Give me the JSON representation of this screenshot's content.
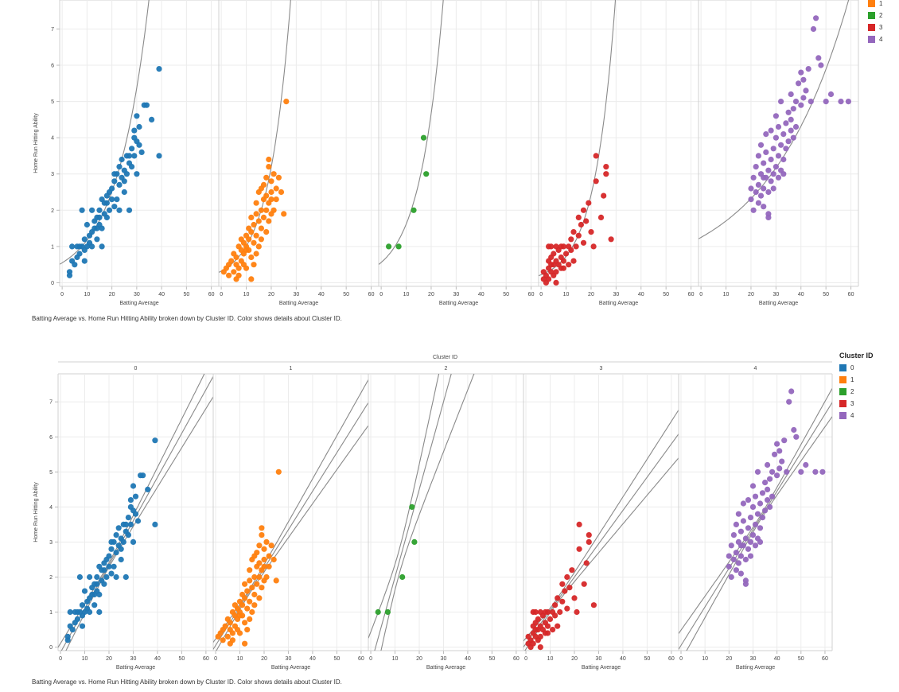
{
  "chart_data": [
    {
      "type": "scatter",
      "trend": "exponential",
      "xlabel": "Batting Average",
      "ylabel": "Home Run Hitting Ability",
      "xlim": [
        -1,
        63
      ],
      "ylim": [
        -0.1,
        7.8
      ],
      "xticks": [
        "0",
        "10",
        "20",
        "30",
        "40",
        "50",
        "60"
      ],
      "yticks": [
        "0",
        "1",
        "2",
        "3",
        "4",
        "5",
        "6",
        "7"
      ],
      "grid": true,
      "legend_title": "",
      "legend_position": "top-right",
      "panels": [
        {
          "cluster": "0",
          "color": "#1f77b4",
          "trend_params": [
            0.55,
            0.076
          ]
        },
        {
          "cluster": "1",
          "color": "#ff7f0e",
          "trend_params": [
            0.32,
            0.115
          ]
        },
        {
          "cluster": "2",
          "color": "#2ca02c",
          "trend_params": [
            0.56,
            0.106
          ]
        },
        {
          "cluster": "3",
          "color": "#d62728",
          "trend_params": [
            0.22,
            0.12
          ]
        },
        {
          "cluster": "4",
          "color": "#9467bd",
          "trend_params": [
            1.25,
            0.031
          ]
        }
      ],
      "caption": "Batting Average vs. Home Run Hitting Ability broken down by Cluster ID.  Color shows details about Cluster ID."
    },
    {
      "type": "scatter",
      "trend": "linear with confidence bands",
      "title": "Cluster ID",
      "xlabel": "Batting Average",
      "ylabel": "Home Run Hitting Ability",
      "xlim": [
        -1,
        63
      ],
      "ylim": [
        -0.1,
        7.8
      ],
      "xticks": [
        "0",
        "10",
        "20",
        "30",
        "40",
        "50",
        "60"
      ],
      "yticks": [
        "0",
        "1",
        "2",
        "3",
        "4",
        "5",
        "6",
        "7"
      ],
      "grid": true,
      "legend_title": "Cluster ID",
      "legend_position": "right",
      "panels": [
        {
          "cluster": "0",
          "color": "#1f77b4",
          "trend_params": [
            -0.15,
            0.125
          ]
        },
        {
          "cluster": "1",
          "color": "#ff7f0e",
          "trend_params": [
            0.05,
            0.11
          ]
        },
        {
          "cluster": "2",
          "color": "#2ca02c",
          "trend_params": [
            -0.5,
            0.25
          ]
        },
        {
          "cluster": "3",
          "color": "#d62728",
          "trend_params": [
            0.1,
            0.095
          ]
        },
        {
          "cluster": "4",
          "color": "#9467bd",
          "trend_params": [
            0.05,
            0.11
          ]
        }
      ],
      "caption": "Batting Average vs. Home Run Hitting Ability broken down by Cluster ID.  Color shows details about Cluster ID."
    }
  ],
  "clusters": [
    {
      "id": "0",
      "label": "0",
      "color": "#1f77b4",
      "points": [
        [
          3,
          0.3
        ],
        [
          3,
          0.2
        ],
        [
          4,
          0.6
        ],
        [
          5,
          0.5
        ],
        [
          6,
          0.7
        ],
        [
          4,
          1.0
        ],
        [
          6,
          1.0
        ],
        [
          7,
          0.8
        ],
        [
          8,
          1.0
        ],
        [
          9,
          0.9
        ],
        [
          9,
          1.2
        ],
        [
          10,
          1.0
        ],
        [
          11,
          1.1
        ],
        [
          11,
          1.3
        ],
        [
          12,
          1.4
        ],
        [
          12,
          1.0
        ],
        [
          13,
          1.5
        ],
        [
          13,
          1.7
        ],
        [
          14,
          1.5
        ],
        [
          14,
          1.2
        ],
        [
          15,
          1.6
        ],
        [
          15,
          1.8
        ],
        [
          15,
          2.0
        ],
        [
          16,
          1.5
        ],
        [
          16,
          1.0
        ],
        [
          17,
          1.9
        ],
        [
          17,
          2.2
        ],
        [
          18,
          1.8
        ],
        [
          18,
          2.2
        ],
        [
          19,
          2.5
        ],
        [
          19,
          2.0
        ],
        [
          20,
          2.3
        ],
        [
          20,
          2.6
        ],
        [
          21,
          2.1
        ],
        [
          21,
          2.8
        ],
        [
          22,
          3.0
        ],
        [
          22,
          2.3
        ],
        [
          23,
          2.7
        ],
        [
          23,
          3.2
        ],
        [
          24,
          3.4
        ],
        [
          24,
          2.9
        ],
        [
          25,
          3.1
        ],
        [
          25,
          2.5
        ],
        [
          26,
          3.5
        ],
        [
          26,
          3.0
        ],
        [
          27,
          3.3
        ],
        [
          27,
          2.0
        ],
        [
          28,
          3.7
        ],
        [
          28,
          3.2
        ],
        [
          29,
          4.2
        ],
        [
          29,
          3.5
        ],
        [
          30,
          4.6
        ],
        [
          30,
          3.9
        ],
        [
          31,
          3.8
        ],
        [
          31,
          4.3
        ],
        [
          32,
          3.6
        ],
        [
          33,
          4.9
        ],
        [
          34,
          4.9
        ],
        [
          36,
          4.5
        ],
        [
          39,
          5.9
        ],
        [
          39,
          3.5
        ],
        [
          8,
          2.0
        ],
        [
          12,
          2.0
        ],
        [
          10,
          1.6
        ],
        [
          18,
          2.4
        ],
        [
          23,
          2.0
        ],
        [
          30,
          3.0
        ],
        [
          29,
          4.0
        ],
        [
          21,
          3.0
        ],
        [
          14,
          1.8
        ],
        [
          16,
          2.3
        ],
        [
          25,
          2.8
        ],
        [
          27,
          3.5
        ],
        [
          9,
          0.6
        ],
        [
          7,
          1.0
        ]
      ]
    },
    {
      "id": "1",
      "label": "1",
      "color": "#ff7f0e",
      "points": [
        [
          1,
          0.3
        ],
        [
          2,
          0.4
        ],
        [
          3,
          0.5
        ],
        [
          3,
          0.2
        ],
        [
          4,
          0.6
        ],
        [
          5,
          0.3
        ],
        [
          5,
          0.8
        ],
        [
          6,
          0.5
        ],
        [
          6,
          0.7
        ],
        [
          7,
          0.4
        ],
        [
          7,
          1.0
        ],
        [
          7,
          0.2
        ],
        [
          8,
          0.6
        ],
        [
          8,
          0.9
        ],
        [
          8,
          1.2
        ],
        [
          9,
          0.5
        ],
        [
          9,
          1.1
        ],
        [
          9,
          0.8
        ],
        [
          10,
          1.0
        ],
        [
          10,
          1.3
        ],
        [
          10,
          0.4
        ],
        [
          11,
          0.9
        ],
        [
          11,
          1.5
        ],
        [
          11,
          1.2
        ],
        [
          12,
          0.7
        ],
        [
          12,
          1.4
        ],
        [
          12,
          1.8
        ],
        [
          13,
          1.1
        ],
        [
          13,
          1.6
        ],
        [
          13,
          0.5
        ],
        [
          14,
          1.3
        ],
        [
          14,
          1.9
        ],
        [
          14,
          2.2
        ],
        [
          15,
          1.0
        ],
        [
          15,
          1.7
        ],
        [
          15,
          2.5
        ],
        [
          16,
          1.5
        ],
        [
          16,
          2.0
        ],
        [
          16,
          1.2
        ],
        [
          17,
          2.3
        ],
        [
          17,
          1.8
        ],
        [
          17,
          2.7
        ],
        [
          18,
          2.0
        ],
        [
          18,
          1.4
        ],
        [
          18,
          2.9
        ],
        [
          19,
          2.2
        ],
        [
          19,
          1.7
        ],
        [
          19,
          3.2
        ],
        [
          20,
          2.5
        ],
        [
          20,
          1.9
        ],
        [
          20,
          2.8
        ],
        [
          21,
          3.0
        ],
        [
          21,
          2.0
        ],
        [
          22,
          2.6
        ],
        [
          22,
          2.3
        ],
        [
          23,
          2.9
        ],
        [
          24,
          2.5
        ],
        [
          25,
          1.9
        ],
        [
          26,
          5.0
        ],
        [
          19,
          3.4
        ],
        [
          12,
          0.1
        ],
        [
          6,
          0.1
        ],
        [
          10,
          0.9
        ],
        [
          14,
          0.8
        ],
        [
          16,
          2.6
        ],
        [
          20,
          2.3
        ],
        [
          18,
          2.4
        ]
      ]
    },
    {
      "id": "2",
      "label": "2",
      "color": "#2ca02c",
      "points": [
        [
          3,
          1.0
        ],
        [
          7,
          1.0
        ],
        [
          13,
          2.0
        ],
        [
          18,
          3.0
        ],
        [
          17,
          4.0
        ]
      ]
    },
    {
      "id": "3",
      "label": "3",
      "color": "#d62728",
      "points": [
        [
          1,
          0.1
        ],
        [
          1,
          0.3
        ],
        [
          2,
          0.2
        ],
        [
          2,
          0.0
        ],
        [
          3,
          0.4
        ],
        [
          3,
          0.1
        ],
        [
          3,
          0.6
        ],
        [
          4,
          0.3
        ],
        [
          4,
          0.7
        ],
        [
          4,
          0.5
        ],
        [
          5,
          0.2
        ],
        [
          5,
          0.8
        ],
        [
          5,
          0.5
        ],
        [
          6,
          0.6
        ],
        [
          6,
          0.3
        ],
        [
          6,
          1.0
        ],
        [
          7,
          0.5
        ],
        [
          7,
          0.9
        ],
        [
          8,
          0.7
        ],
        [
          8,
          0.4
        ],
        [
          9,
          1.0
        ],
        [
          9,
          0.6
        ],
        [
          10,
          0.8
        ],
        [
          11,
          1.0
        ],
        [
          11,
          0.5
        ],
        [
          12,
          1.2
        ],
        [
          12,
          0.9
        ],
        [
          13,
          1.4
        ],
        [
          14,
          1.0
        ],
        [
          15,
          1.3
        ],
        [
          15,
          1.8
        ],
        [
          16,
          1.6
        ],
        [
          17,
          2.0
        ],
        [
          17,
          1.1
        ],
        [
          18,
          1.7
        ],
        [
          19,
          2.2
        ],
        [
          20,
          1.4
        ],
        [
          21,
          1.0
        ],
        [
          22,
          2.8
        ],
        [
          22,
          3.5
        ],
        [
          24,
          1.8
        ],
        [
          25,
          2.4
        ],
        [
          26,
          3.2
        ],
        [
          26,
          3.0
        ],
        [
          28,
          1.2
        ],
        [
          3,
          1.0
        ],
        [
          4,
          1.0
        ],
        [
          6,
          0.0
        ],
        [
          9,
          0.4
        ],
        [
          13,
          0.6
        ],
        [
          8,
          1.0
        ]
      ]
    },
    {
      "id": "4",
      "label": "4",
      "color": "#9467bd",
      "points": [
        [
          20,
          2.3
        ],
        [
          20,
          2.6
        ],
        [
          21,
          2.0
        ],
        [
          21,
          2.9
        ],
        [
          22,
          2.5
        ],
        [
          22,
          3.2
        ],
        [
          23,
          2.2
        ],
        [
          23,
          2.7
        ],
        [
          23,
          3.5
        ],
        [
          24,
          2.4
        ],
        [
          24,
          3.0
        ],
        [
          24,
          3.8
        ],
        [
          25,
          2.6
        ],
        [
          25,
          3.3
        ],
        [
          25,
          2.1
        ],
        [
          26,
          2.9
        ],
        [
          26,
          3.6
        ],
        [
          26,
          4.1
        ],
        [
          27,
          2.5
        ],
        [
          27,
          3.1
        ],
        [
          27,
          1.9
        ],
        [
          28,
          3.4
        ],
        [
          28,
          2.8
        ],
        [
          28,
          4.2
        ],
        [
          29,
          3.0
        ],
        [
          29,
          3.7
        ],
        [
          29,
          2.6
        ],
        [
          30,
          3.2
        ],
        [
          30,
          4.0
        ],
        [
          30,
          4.6
        ],
        [
          31,
          3.5
        ],
        [
          31,
          2.9
        ],
        [
          31,
          4.3
        ],
        [
          32,
          3.8
        ],
        [
          32,
          3.1
        ],
        [
          32,
          5.0
        ],
        [
          33,
          4.1
        ],
        [
          33,
          3.4
        ],
        [
          34,
          4.4
        ],
        [
          34,
          3.7
        ],
        [
          35,
          4.7
        ],
        [
          35,
          3.9
        ],
        [
          36,
          4.2
        ],
        [
          36,
          5.2
        ],
        [
          37,
          4.0
        ],
        [
          37,
          4.8
        ],
        [
          38,
          5.0
        ],
        [
          38,
          4.3
        ],
        [
          39,
          5.5
        ],
        [
          40,
          4.9
        ],
        [
          40,
          5.8
        ],
        [
          41,
          5.1
        ],
        [
          41,
          5.6
        ],
        [
          42,
          5.3
        ],
        [
          43,
          5.9
        ],
        [
          44,
          5.0
        ],
        [
          45,
          7.0
        ],
        [
          46,
          7.3
        ],
        [
          47,
          6.2
        ],
        [
          48,
          6.0
        ],
        [
          50,
          5.0
        ],
        [
          52,
          5.2
        ],
        [
          56,
          5.0
        ],
        [
          59,
          5.0
        ],
        [
          27,
          1.8
        ],
        [
          25,
          2.9
        ],
        [
          33,
          3.0
        ],
        [
          36,
          4.5
        ]
      ]
    }
  ],
  "top_legend": {
    "items": [
      "1",
      "2",
      "3",
      "4"
    ]
  },
  "bottom_legend": {
    "title": "Cluster ID",
    "items": [
      "0",
      "1",
      "2",
      "3",
      "4"
    ]
  },
  "top_caption": "Batting Average vs. Home Run Hitting Ability broken down by Cluster ID.  Color shows details about Cluster ID.",
  "bottom_caption": "Batting Average vs. Home Run Hitting Ability broken down by Cluster ID.  Color shows details about Cluster ID.",
  "bottom_header": {
    "title": "Cluster ID",
    "panel_labels": [
      "0",
      "1",
      "2",
      "3",
      "4"
    ]
  }
}
